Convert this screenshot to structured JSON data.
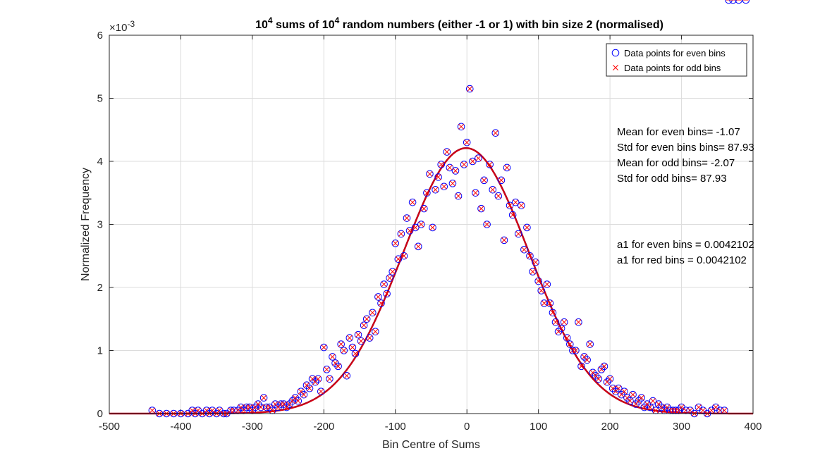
{
  "chart_data": {
    "type": "scatter",
    "title_parts": [
      {
        "t": "10",
        "sup": false
      },
      {
        "t": "4",
        "sup": true
      },
      {
        "t": " sums of 10",
        "sup": false
      },
      {
        "t": "4",
        "sup": true
      },
      {
        "t": " random numbers (either -1 or 1) with bin size 2 (normalised)",
        "sup": false
      }
    ],
    "xlabel": "Bin Centre of Sums",
    "ylabel": "Normalized Frequency",
    "y_exponent_label": "×10",
    "y_exponent": "-3",
    "xlim": [
      -500,
      400
    ],
    "ylim": [
      0,
      6
    ],
    "y_scale_factor": 0.001,
    "xticks": [
      -500,
      -400,
      -300,
      -200,
      -100,
      0,
      100,
      200,
      300,
      400
    ],
    "yticks": [
      0,
      1,
      2,
      3,
      4,
      5,
      6
    ],
    "grid": true,
    "legend_position": "top-right",
    "series": [
      {
        "name": "Data points for even bins",
        "marker": "circle",
        "color": "#0000ff"
      },
      {
        "name": "Data points for odd bins",
        "marker": "x",
        "color": "#ff0000"
      }
    ],
    "points_x": [
      -440,
      -430,
      -420,
      -410,
      -400,
      -390,
      -384,
      -380,
      -376,
      -370,
      -364,
      -360,
      -356,
      -350,
      -346,
      -340,
      -336,
      -330,
      -326,
      -320,
      -316,
      -312,
      -308,
      -304,
      -300,
      -296,
      -292,
      -288,
      -284,
      -280,
      -276,
      -272,
      -268,
      -264,
      -260,
      -256,
      -252,
      -248,
      -244,
      -240,
      -236,
      -232,
      -228,
      -224,
      -220,
      -216,
      -212,
      -208,
      -204,
      -200,
      -196,
      -192,
      -188,
      -184,
      -180,
      -176,
      -172,
      -168,
      -164,
      -160,
      -156,
      -152,
      -148,
      -144,
      -140,
      -136,
      -132,
      -128,
      -124,
      -120,
      -116,
      -112,
      -108,
      -104,
      -100,
      -96,
      -92,
      -88,
      -84,
      -80,
      -76,
      -72,
      -68,
      -64,
      -60,
      -56,
      -52,
      -48,
      -44,
      -40,
      -36,
      -32,
      -28,
      -24,
      -20,
      -16,
      -12,
      -8,
      -4,
      0,
      4,
      8,
      12,
      16,
      20,
      24,
      28,
      32,
      36,
      40,
      44,
      48,
      52,
      56,
      60,
      64,
      68,
      72,
      76,
      80,
      84,
      88,
      92,
      96,
      100,
      104,
      108,
      112,
      116,
      120,
      124,
      128,
      132,
      136,
      140,
      144,
      148,
      152,
      156,
      160,
      164,
      168,
      172,
      176,
      180,
      184,
      188,
      192,
      196,
      200,
      204,
      208,
      212,
      216,
      220,
      224,
      228,
      232,
      236,
      240,
      244,
      248,
      252,
      256,
      260,
      264,
      268,
      272,
      276,
      280,
      284,
      288,
      292,
      296,
      300,
      306,
      312,
      318,
      324,
      330,
      336,
      342,
      348,
      354,
      360,
      366,
      372,
      380,
      390
    ],
    "points_y": [
      0.05,
      0.0,
      0.0,
      0.0,
      0.0,
      0.0,
      0.05,
      0.0,
      0.05,
      0.0,
      0.05,
      0.0,
      0.05,
      0.0,
      0.05,
      0.0,
      0.0,
      0.05,
      0.05,
      0.05,
      0.1,
      0.05,
      0.1,
      0.1,
      0.05,
      0.1,
      0.15,
      0.1,
      0.25,
      0.1,
      0.1,
      0.05,
      0.15,
      0.1,
      0.15,
      0.15,
      0.1,
      0.15,
      0.2,
      0.25,
      0.2,
      0.35,
      0.3,
      0.45,
      0.4,
      0.55,
      0.5,
      0.55,
      0.35,
      1.05,
      0.7,
      0.55,
      0.9,
      0.8,
      0.75,
      1.1,
      1.0,
      0.6,
      1.2,
      1.05,
      0.95,
      1.25,
      1.15,
      1.4,
      1.5,
      1.2,
      1.6,
      1.3,
      1.85,
      1.75,
      2.05,
      1.9,
      2.15,
      2.25,
      2.7,
      2.45,
      2.85,
      2.5,
      3.1,
      2.9,
      3.35,
      2.95,
      2.65,
      3.0,
      3.25,
      3.5,
      3.8,
      2.95,
      3.55,
      3.75,
      3.95,
      3.6,
      4.15,
      3.9,
      3.65,
      3.85,
      3.45,
      4.55,
      3.95,
      4.3,
      5.15,
      4.0,
      3.5,
      4.05,
      3.25,
      3.7,
      3.0,
      3.95,
      3.55,
      4.45,
      3.45,
      3.7,
      2.75,
      3.9,
      3.3,
      3.15,
      3.35,
      2.85,
      3.3,
      2.6,
      2.95,
      2.5,
      2.25,
      2.4,
      2.1,
      1.95,
      1.75,
      2.05,
      1.75,
      1.6,
      1.45,
      1.3,
      1.35,
      1.45,
      1.2,
      1.1,
      1.0,
      1.0,
      1.45,
      0.75,
      0.9,
      0.85,
      1.1,
      0.65,
      0.6,
      0.55,
      0.7,
      0.75,
      0.5,
      0.55,
      0.4,
      0.35,
      0.4,
      0.3,
      0.35,
      0.25,
      0.2,
      0.3,
      0.15,
      0.2,
      0.25,
      0.1,
      0.15,
      0.1,
      0.2,
      0.05,
      0.15,
      0.1,
      0.05,
      0.1,
      0.05,
      0.05,
      0.05,
      0.05,
      0.1,
      0.05,
      0.05,
      0.0,
      0.1,
      0.05,
      0.0,
      0.05,
      0.1,
      0.05,
      0.05
    ],
    "fit": {
      "name": "Gaussian fit",
      "color": "#b00020",
      "amplitude": 4.2102,
      "mean": -1.07,
      "std": 87.93
    }
  },
  "annotations": {
    "block1": [
      "Mean for even bins= -1.07",
      "Std for even bins bins= 87.93",
      "Mean for odd bins= -2.07",
      "Std for odd bins= 87.93"
    ],
    "block2": [
      "a1 for even bins = 0.0042102",
      "a1 for red bins = 0.0042102"
    ]
  }
}
